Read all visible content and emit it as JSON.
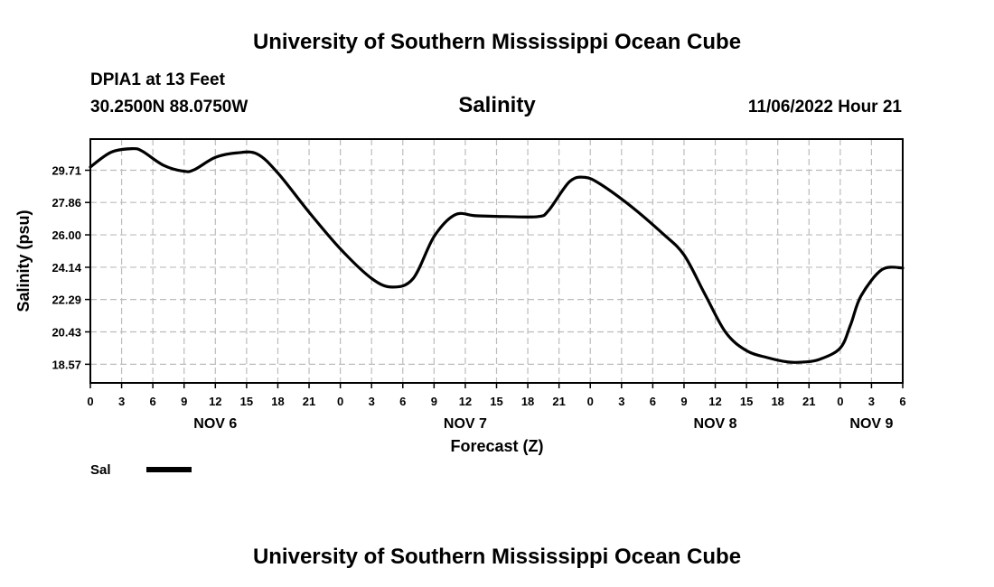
{
  "page": {
    "title_top": "University of Southern Mississippi Ocean Cube",
    "title_bottom": "University of Southern Mississippi Ocean Cube",
    "station": "DPIA1 at 13 Feet",
    "coords": "30.2500N  88.0750W",
    "variable": "Salinity",
    "datetime": "11/06/2022 Hour 21"
  },
  "chart_data": {
    "type": "line",
    "title": "Salinity",
    "xlabel": "Forecast (Z)",
    "ylabel": "Salinity (psu)",
    "x_unit": "hours since NOV 6 00Z",
    "xlim": [
      0,
      78
    ],
    "ylim": [
      17.5,
      31.5
    ],
    "grid": true,
    "y_ticks": [
      "18.57",
      "20.43",
      "22.29",
      "24.14",
      "26.00",
      "27.86",
      "29.71"
    ],
    "x_ticks": [
      "0",
      "3",
      "6",
      "9",
      "12",
      "15",
      "18",
      "21",
      "0",
      "3",
      "6",
      "9",
      "12",
      "15",
      "18",
      "21",
      "0",
      "3",
      "6",
      "9",
      "12",
      "15",
      "18",
      "21",
      "0",
      "3",
      "6"
    ],
    "day_labels": [
      {
        "label": "NOV 6",
        "hour": 12
      },
      {
        "label": "NOV 7",
        "hour": 36
      },
      {
        "label": "NOV 8",
        "hour": 60
      },
      {
        "label": "NOV 9",
        "hour": 75
      }
    ],
    "legend": [
      {
        "name": "Sal",
        "color": "#000000"
      }
    ],
    "series": [
      {
        "name": "Sal",
        "color": "#000000",
        "x": [
          0,
          2,
          4,
          5,
          7,
          9,
          10,
          12,
          14,
          16,
          18,
          21,
          24,
          27,
          29,
          31,
          33,
          35,
          37,
          40,
          43,
          44,
          46,
          47.5,
          49,
          52,
          55,
          57,
          59,
          61,
          63,
          65,
          67,
          68.5,
          70,
          72,
          73,
          74,
          76,
          78
        ],
        "y": [
          29.9,
          30.75,
          30.95,
          30.8,
          30.0,
          29.65,
          29.75,
          30.45,
          30.7,
          30.65,
          29.55,
          27.3,
          25.2,
          23.5,
          23.0,
          23.5,
          25.9,
          27.15,
          27.1,
          27.05,
          27.05,
          27.4,
          29.05,
          29.3,
          28.9,
          27.6,
          26.05,
          24.85,
          22.6,
          20.4,
          19.35,
          18.95,
          18.7,
          18.7,
          18.85,
          19.5,
          20.85,
          22.5,
          24.0,
          24.1
        ]
      }
    ]
  }
}
